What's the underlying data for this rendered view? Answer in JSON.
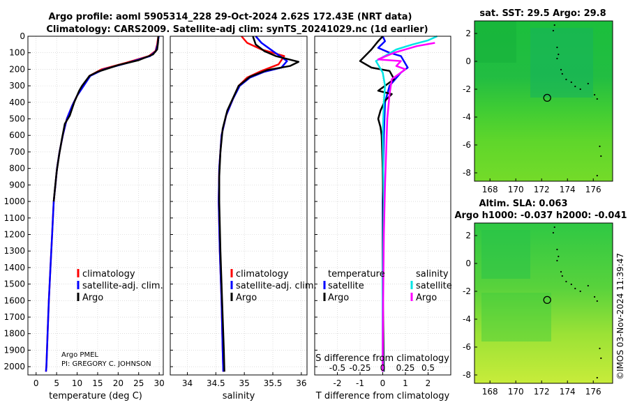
{
  "header": {
    "title_line1": "Argo profile: aoml 5905314_228 29-Oct-2024 2.62S 172.43E (NRT data)",
    "title_line2": "Climatology: CARS2009. Satellite-adj clim: synTS_20241029.nc (1d earlier)"
  },
  "colors": {
    "climatology": "#ff0000",
    "satellite_adj": "#0000ff",
    "argo": "#000000",
    "sat_salinity": "#00e5e5",
    "argo_salinity": "#ff00ff"
  },
  "legends": {
    "p1": [
      "climatology",
      "satellite-adj. clim.",
      "Argo"
    ],
    "p2": [
      "climatology",
      "satellite-adj. clim.",
      "Argo"
    ],
    "p3_temp_title": "temperature",
    "p3_sal_title": "salinity",
    "p3_temp": [
      "satellite",
      "Argo"
    ],
    "p3_sal": [
      "satellite",
      "Argo"
    ]
  },
  "annotations": {
    "pi_line1": "Argo PMEL",
    "pi_line2": "PI: GREGORY C. JOHNSON",
    "imos_stamp": "©IMOS 03-Nov-2024 11:39:47",
    "s_diff_label": "S difference from climatology"
  },
  "maps": {
    "sst_title": "sat. SST: 29.5 Argo: 29.8",
    "sla_title_line1": "Altim. SLA: 0.063",
    "sla_title_line2": "Argo h1000: -0.037 h2000: -0.041",
    "lon_ticks": [
      "168",
      "170",
      "172",
      "174",
      "176"
    ],
    "lat_ticks": [
      "2",
      "0",
      "-2",
      "-4",
      "-6",
      "-8"
    ],
    "argo_position": {
      "lon": 172.43,
      "lat": -2.62
    }
  },
  "chart_data": [
    {
      "type": "line",
      "title": "",
      "xlabel": "temperature (deg C)",
      "ylabel": "",
      "xlim": [
        -2,
        31
      ],
      "ylim": [
        0,
        2050
      ],
      "xticks": [
        0,
        5,
        10,
        15,
        20,
        25,
        30
      ],
      "xticklabels": [
        "0",
        "5",
        "10",
        "15",
        "20",
        "25",
        "30"
      ],
      "yticks": [
        0,
        100,
        200,
        300,
        400,
        500,
        600,
        700,
        800,
        900,
        1000,
        1100,
        1200,
        1300,
        1400,
        1500,
        1600,
        1700,
        1800,
        1900,
        2000
      ],
      "yticklabels": [
        "0",
        "100",
        "200",
        "300",
        "400",
        "500",
        "600",
        "700",
        "800",
        "900",
        "1000",
        "1100",
        "1200",
        "1300",
        "1400",
        "1500",
        "1600",
        "1700",
        "1800",
        "1900",
        "2000"
      ],
      "series": [
        {
          "name": "climatology",
          "color": "#ff0000",
          "width": 2.5,
          "points": [
            [
              29.8,
              0
            ],
            [
              29.5,
              50
            ],
            [
              29.1,
              90
            ],
            [
              27.5,
              120
            ],
            [
              22,
              160
            ],
            [
              16,
              200
            ],
            [
              13,
              240
            ],
            [
              11.5,
              300
            ],
            [
              10,
              360
            ],
            [
              8.8,
              420
            ],
            [
              7.5,
              500
            ],
            [
              6.5,
              600
            ],
            [
              5.7,
              700
            ],
            [
              5.1,
              800
            ],
            [
              4.7,
              900
            ],
            [
              4.3,
              1000
            ],
            [
              3.9,
              1200
            ],
            [
              3.5,
              1400
            ],
            [
              3.1,
              1600
            ],
            [
              2.8,
              1800
            ],
            [
              2.5,
              2000
            ],
            [
              2.4,
              2030
            ]
          ]
        },
        {
          "name": "satellite-adj. clim.",
          "color": "#0000ff",
          "width": 2.5,
          "points": [
            [
              29.9,
              0
            ],
            [
              29.6,
              50
            ],
            [
              29.2,
              90
            ],
            [
              27.8,
              120
            ],
            [
              22.5,
              160
            ],
            [
              16.5,
              200
            ],
            [
              13.2,
              240
            ],
            [
              11.6,
              300
            ],
            [
              10,
              360
            ],
            [
              8.8,
              420
            ],
            [
              7.5,
              500
            ],
            [
              6.5,
              600
            ],
            [
              5.7,
              700
            ],
            [
              5.1,
              800
            ],
            [
              4.7,
              900
            ],
            [
              4.3,
              1000
            ],
            [
              3.9,
              1200
            ],
            [
              3.5,
              1400
            ],
            [
              3.1,
              1600
            ],
            [
              2.8,
              1800
            ],
            [
              2.5,
              2000
            ],
            [
              2.4,
              2030
            ]
          ]
        },
        {
          "name": "Argo",
          "color": "#000000",
          "width": 2.5,
          "points": [
            [
              29.8,
              0
            ],
            [
              29.7,
              40
            ],
            [
              29.5,
              80
            ],
            [
              28.5,
              110
            ],
            [
              25,
              145
            ],
            [
              20,
              175
            ],
            [
              15,
              215
            ],
            [
              13,
              240
            ],
            [
              11.2,
              300
            ],
            [
              10.5,
              330
            ],
            [
              9.3,
              400
            ],
            [
              8.2,
              480
            ],
            [
              7,
              530
            ],
            [
              6.3,
              620
            ],
            [
              5.6,
              720
            ],
            [
              5,
              820
            ],
            [
              4.6,
              920
            ],
            [
              4.3,
              1000
            ]
          ]
        }
      ]
    },
    {
      "type": "line",
      "title": "",
      "xlabel": "salinity",
      "ylabel": "",
      "xlim": [
        33.7,
        36.1
      ],
      "ylim": [
        0,
        2050
      ],
      "xticks": [
        34,
        34.5,
        35,
        35.5,
        36
      ],
      "xticklabels": [
        "34",
        "34.5",
        "35",
        "35.5",
        "36"
      ],
      "series": [
        {
          "name": "climatology",
          "color": "#ff0000",
          "width": 2.5,
          "points": [
            [
              34.95,
              0
            ],
            [
              35.05,
              40
            ],
            [
              35.3,
              80
            ],
            [
              35.7,
              120
            ],
            [
              35.6,
              170
            ],
            [
              35.3,
              210
            ],
            [
              35.05,
              250
            ],
            [
              34.9,
              300
            ],
            [
              34.8,
              380
            ],
            [
              34.68,
              480
            ],
            [
              34.6,
              600
            ],
            [
              34.56,
              800
            ],
            [
              34.55,
              1000
            ],
            [
              34.57,
              1300
            ],
            [
              34.6,
              1600
            ],
            [
              34.62,
              1900
            ],
            [
              34.63,
              2030
            ]
          ]
        },
        {
          "name": "satellite-adj. clim.",
          "color": "#0000ff",
          "width": 2.5,
          "points": [
            [
              35.2,
              0
            ],
            [
              35.3,
              40
            ],
            [
              35.5,
              90
            ],
            [
              35.75,
              150
            ],
            [
              35.65,
              190
            ],
            [
              35.35,
              215
            ],
            [
              35.1,
              250
            ],
            [
              34.92,
              300
            ],
            [
              34.8,
              380
            ],
            [
              34.68,
              480
            ],
            [
              34.6,
              600
            ],
            [
              34.56,
              800
            ],
            [
              34.55,
              1000
            ],
            [
              34.57,
              1300
            ],
            [
              34.6,
              1600
            ],
            [
              34.62,
              1900
            ],
            [
              34.63,
              2030
            ]
          ]
        },
        {
          "name": "Argo",
          "color": "#000000",
          "width": 2.5,
          "points": [
            [
              35.15,
              0
            ],
            [
              35.2,
              50
            ],
            [
              35.35,
              90
            ],
            [
              35.55,
              120
            ],
            [
              35.95,
              155
            ],
            [
              35.8,
              180
            ],
            [
              35.4,
              205
            ],
            [
              35.1,
              245
            ],
            [
              34.9,
              300
            ],
            [
              34.82,
              360
            ],
            [
              34.7,
              450
            ],
            [
              34.62,
              560
            ],
            [
              34.58,
              700
            ],
            [
              34.56,
              850
            ],
            [
              34.56,
              1000
            ],
            [
              34.58,
              1300
            ],
            [
              34.61,
              1600
            ],
            [
              34.64,
              1900
            ],
            [
              34.65,
              2030
            ]
          ]
        }
      ]
    },
    {
      "type": "line",
      "title": "",
      "xlabel": "T difference from climatology",
      "ylabel": "",
      "xlim": [
        -3,
        3
      ],
      "ylim": [
        0,
        2050
      ],
      "xticks": [
        -2,
        -1,
        0,
        1,
        2
      ],
      "xticklabels": [
        "-2",
        "-1",
        "0",
        "1",
        "2"
      ],
      "secondary_xlabel": "S difference from climatology",
      "secondary_xticks": [
        -0.5,
        -0.25,
        0,
        0.25,
        0.5
      ],
      "secondary_xticklabels": [
        "-0.5",
        "-0.25",
        "0",
        "0.25",
        "0.5"
      ],
      "series": [
        {
          "name": "temperature satellite",
          "color": "#0000ff",
          "width": 2.5,
          "points": [
            [
              0,
              0
            ],
            [
              0.1,
              30
            ],
            [
              -0.2,
              70
            ],
            [
              0.3,
              100
            ],
            [
              0.8,
              120
            ],
            [
              1.1,
              190
            ],
            [
              0.8,
              220
            ],
            [
              0.3,
              300
            ],
            [
              0.1,
              400
            ],
            [
              0.05,
              600
            ],
            [
              0,
              1000
            ],
            [
              0,
              2030
            ]
          ]
        },
        {
          "name": "temperature Argo",
          "color": "#000000",
          "width": 2.5,
          "points": [
            [
              0,
              0
            ],
            [
              -0.2,
              30
            ],
            [
              -0.5,
              80
            ],
            [
              -1,
              150
            ],
            [
              -0.5,
              190
            ],
            [
              0.3,
              210
            ],
            [
              0.5,
              260
            ],
            [
              0.1,
              300
            ],
            [
              -0.2,
              330
            ],
            [
              0.4,
              350
            ],
            [
              0.1,
              390
            ],
            [
              -0.1,
              450
            ],
            [
              -0.2,
              500
            ],
            [
              -0.1,
              550
            ],
            [
              -0.05,
              600
            ],
            [
              0,
              800
            ],
            [
              0.02,
              1000
            ],
            [
              0,
              1500
            ],
            [
              0.05,
              2030
            ]
          ]
        },
        {
          "name": "salinity satellite",
          "color": "#00e5e5",
          "width": 2.5,
          "points": [
            [
              2.4,
              0
            ],
            [
              2,
              25
            ],
            [
              1.3,
              50
            ],
            [
              0.6,
              80
            ],
            [
              -0.3,
              150
            ],
            [
              0,
              220
            ],
            [
              0.1,
              300
            ],
            [
              0.05,
              400
            ],
            [
              0,
              600
            ],
            [
              0.05,
              1000
            ],
            [
              0,
              1500
            ],
            [
              0.02,
              2030
            ]
          ]
        },
        {
          "name": "salinity Argo",
          "color": "#ff00ff",
          "width": 2.5,
          "points": [
            [
              2.3,
              40
            ],
            [
              1.5,
              60
            ],
            [
              0.5,
              100
            ],
            [
              -0.2,
              140
            ],
            [
              0.8,
              150
            ],
            [
              0.6,
              180
            ],
            [
              1,
              200
            ],
            [
              0.4,
              260
            ],
            [
              0.3,
              350
            ],
            [
              0.2,
              500
            ],
            [
              0.15,
              700
            ],
            [
              0.1,
              900
            ],
            [
              0.05,
              1200
            ],
            [
              0.02,
              1600
            ],
            [
              0,
              2030
            ]
          ]
        }
      ]
    }
  ]
}
